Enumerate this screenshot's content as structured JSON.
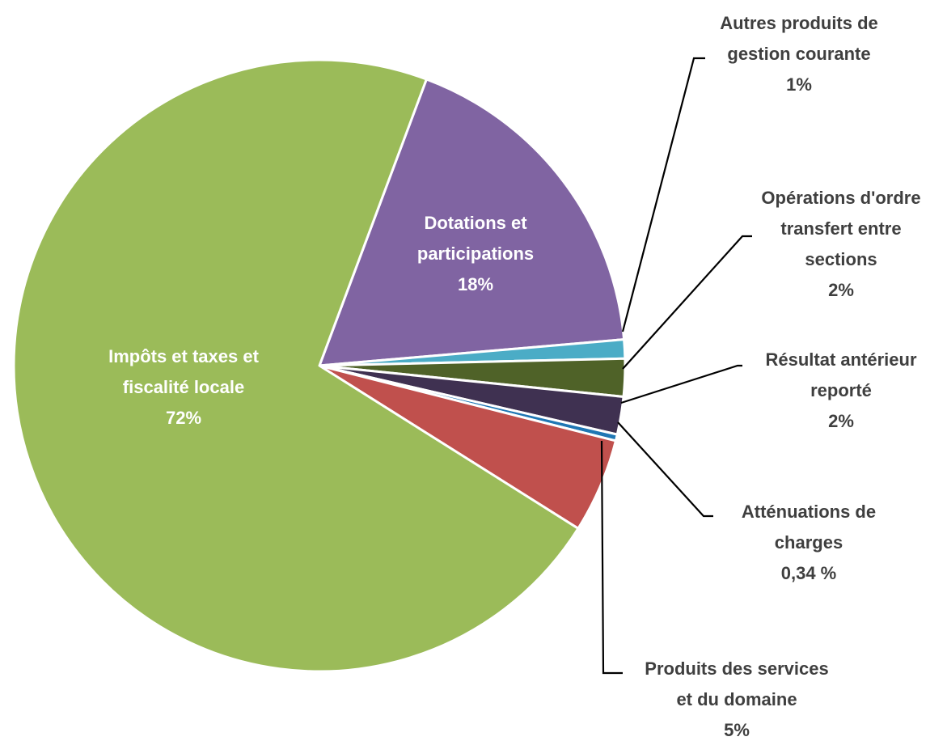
{
  "chart_data": {
    "type": "pie",
    "title": "",
    "slices": [
      {
        "name": "Dotations et participations",
        "value": 18,
        "label_lines": [
          "Dotations et",
          "participations",
          "18%"
        ],
        "color": "#8064a2",
        "label_style": "inside"
      },
      {
        "name": "Autres produits de gestion courante",
        "value": 1,
        "label_lines": [
          "Autres produits de",
          "gestion courante",
          "1%"
        ],
        "color": "#4bacc6",
        "label_style": "outside"
      },
      {
        "name": "Opérations d'ordre transfert entre sections",
        "value": 2,
        "label_lines": [
          "Opérations d'ordre",
          "transfert entre",
          "sections",
          "2%"
        ],
        "color": "#4f6228",
        "label_style": "outside"
      },
      {
        "name": "Résultat antérieur reporté",
        "value": 2,
        "label_lines": [
          "Résultat antérieur",
          "reporté",
          "2%"
        ],
        "color": "#3f3151",
        "label_style": "outside"
      },
      {
        "name": "Atténuations de charges",
        "value": 0.34,
        "label_lines": [
          "Atténuations de",
          "charges",
          "0,34 %"
        ],
        "color": "#1f77b4",
        "label_style": "outside"
      },
      {
        "name": "Produits des services et du domaine",
        "value": 5,
        "label_lines": [
          "Produits des services",
          "et du domaine",
          "5%"
        ],
        "color": "#c0504d",
        "label_style": "outside"
      },
      {
        "name": "Impôts et taxes et fiscalité locale",
        "value": 72,
        "label_lines": [
          "Impôts et taxes et",
          "fiscalité locale",
          "72%"
        ],
        "color": "#9bbb59",
        "label_style": "inside"
      }
    ],
    "legend": "none"
  }
}
